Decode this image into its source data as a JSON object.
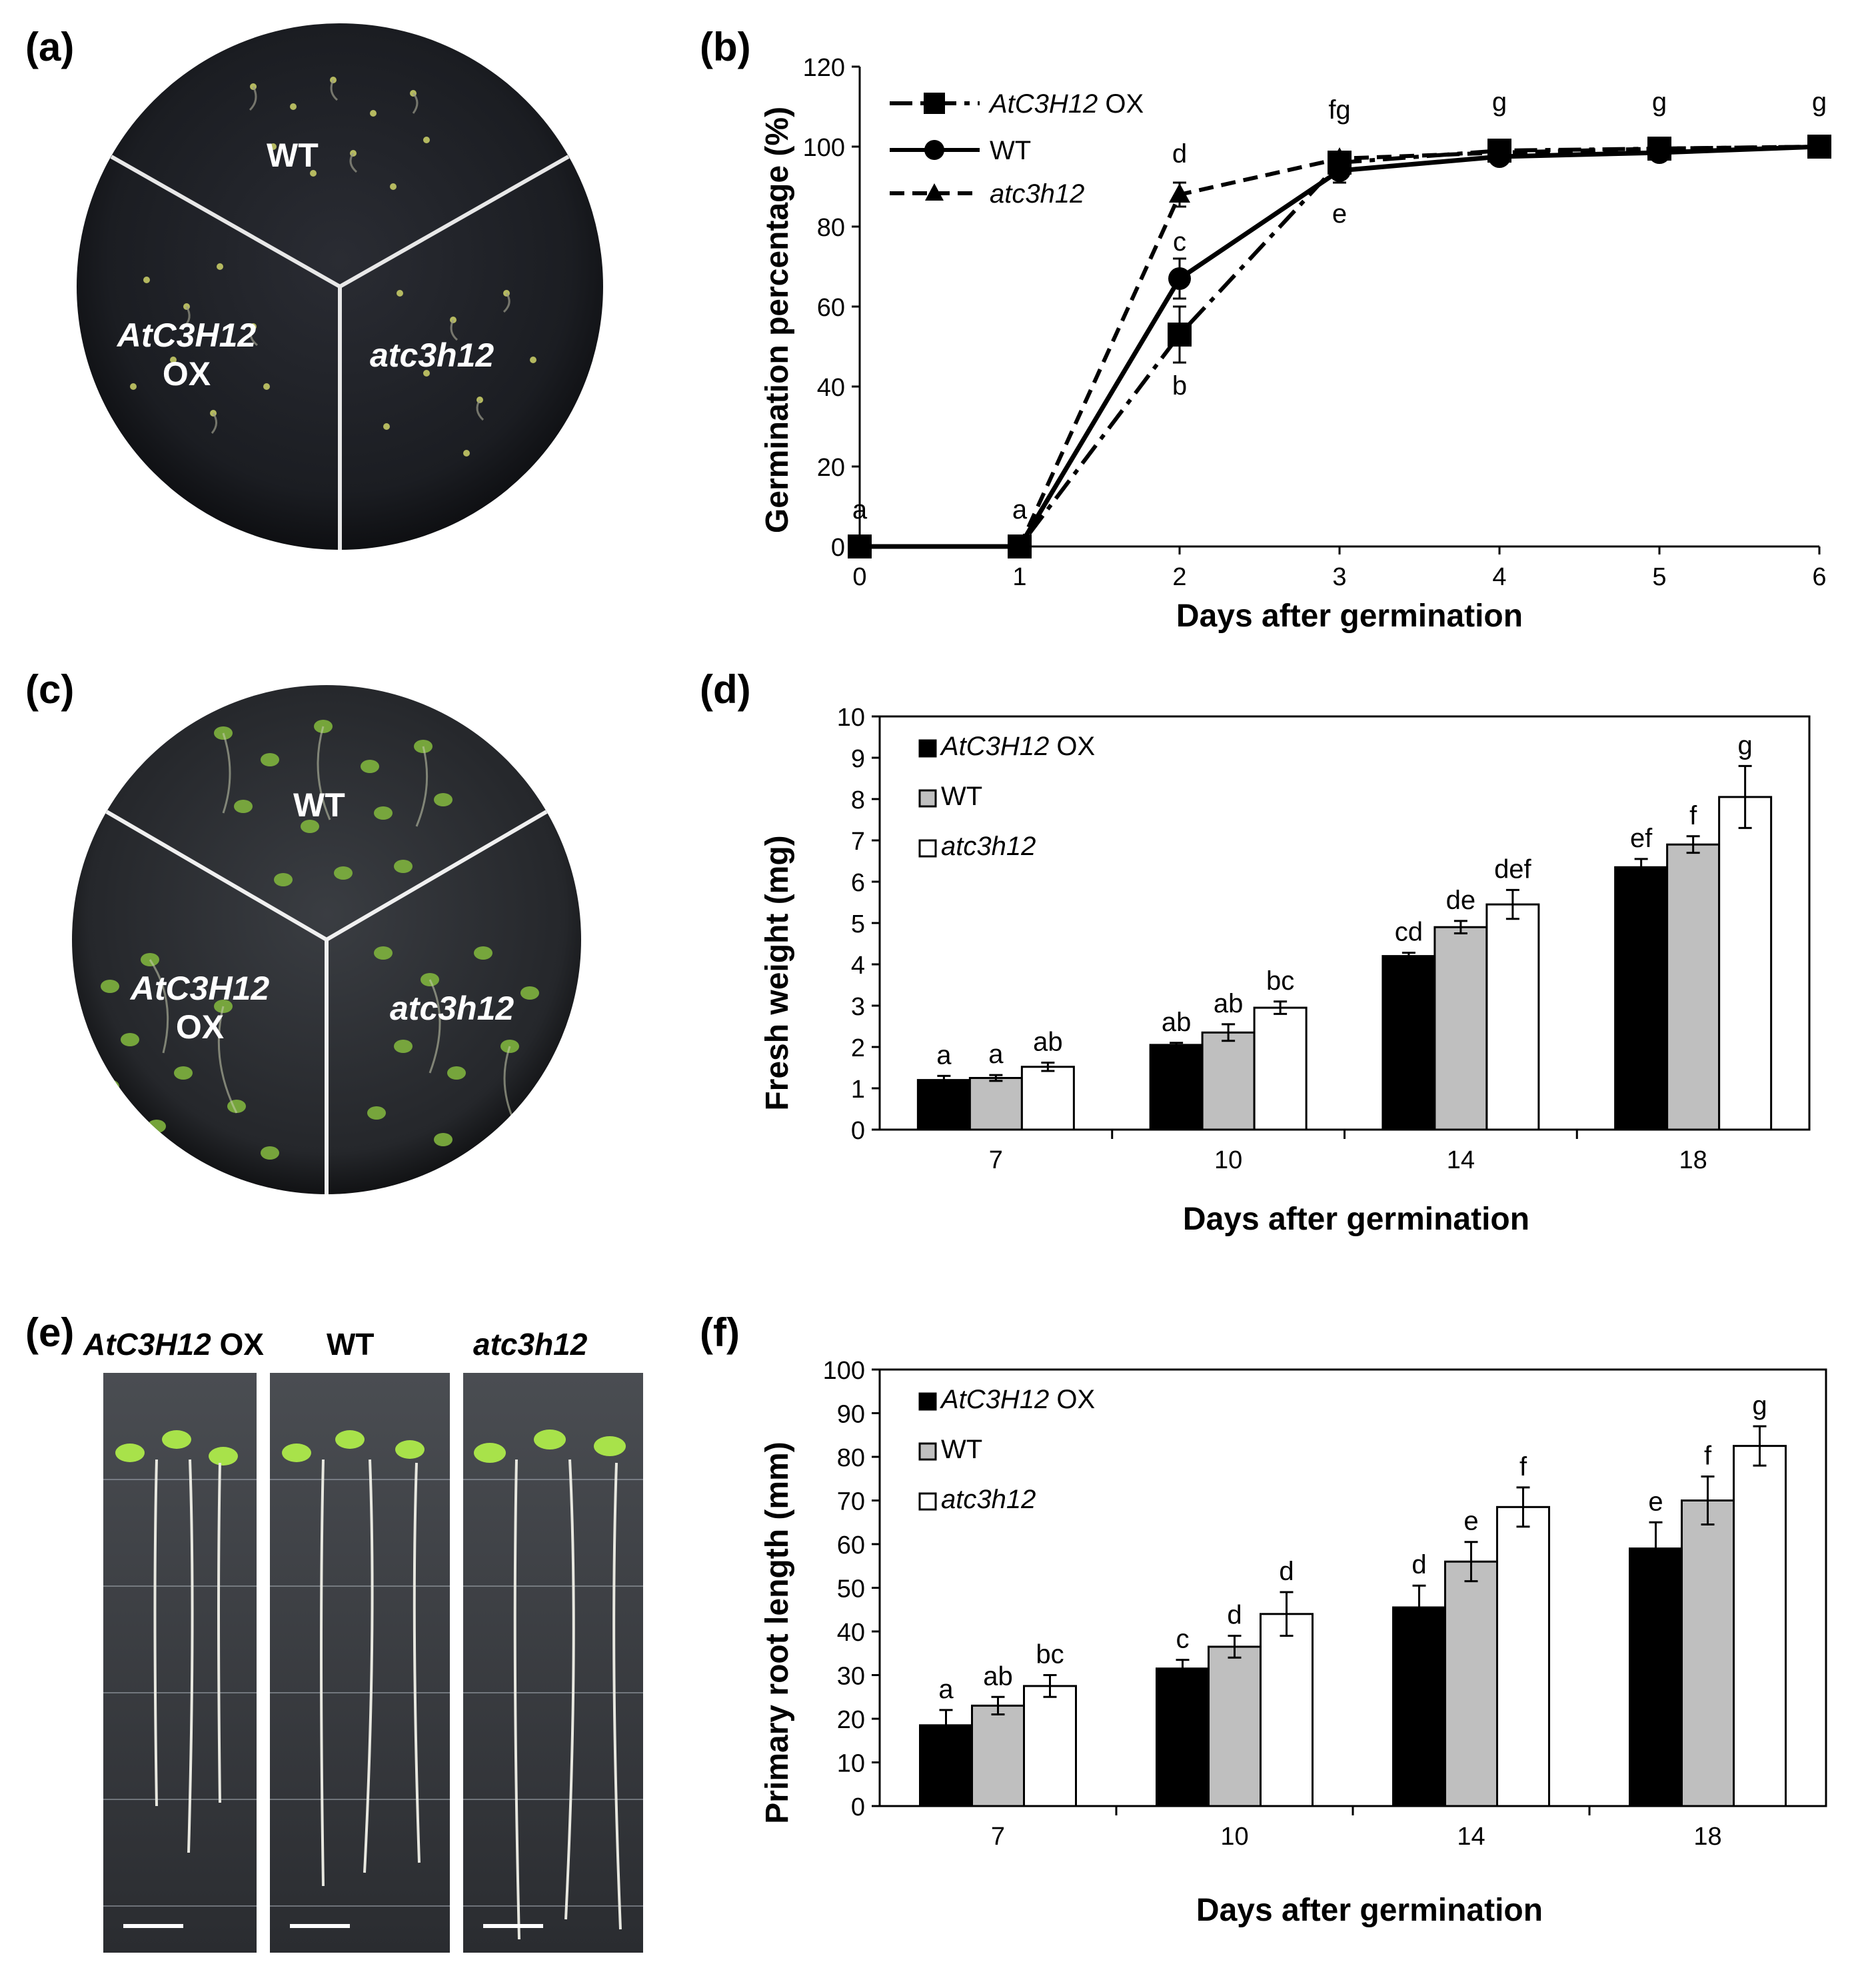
{
  "panels": {
    "a": {
      "label": "(a)",
      "wt": "WT",
      "ox_name": "AtC3H12",
      "ox_suffix": "OX",
      "mutant": "atc3h12"
    },
    "c": {
      "label": "(c)",
      "wt": "WT",
      "ox_name": "AtC3H12",
      "ox_suffix": "OX",
      "mutant": "atc3h12"
    },
    "e": {
      "label": "(e)",
      "ox_name": "AtC3H12",
      "ox_suffix": "OX",
      "wt": "WT",
      "mutant": "atc3h12"
    },
    "b": {
      "label": "(b)"
    },
    "d": {
      "label": "(d)"
    },
    "f": {
      "label": "(f)"
    }
  },
  "chart_data": [
    {
      "id": "b",
      "type": "line",
      "xlabel": "Days after germination",
      "ylabel": "Germination percentage (%)",
      "xlim": [
        0,
        6
      ],
      "ylim": [
        0,
        120
      ],
      "xticks": [
        "0",
        "1",
        "2",
        "3",
        "4",
        "5",
        "6"
      ],
      "yticks": [
        "0",
        "20",
        "40",
        "60",
        "80",
        "100",
        "120"
      ],
      "legend_position": "top-left",
      "x": [
        0,
        1,
        2,
        3,
        4,
        5,
        6
      ],
      "series": [
        {
          "name": "AtC3H12",
          "name_suffix": " OX",
          "marker": "square",
          "line": "dash-dot",
          "values": [
            0,
            0,
            53,
            96,
            99,
            99.5,
            100
          ],
          "errors": [
            0,
            0,
            7,
            1.5,
            1,
            0.5,
            0
          ]
        },
        {
          "name": "WT",
          "name_suffix": "",
          "marker": "circle",
          "line": "solid",
          "values": [
            0,
            0,
            67,
            94,
            97.5,
            98.5,
            100
          ],
          "errors": [
            0,
            0,
            5,
            3,
            1,
            0.5,
            0
          ]
        },
        {
          "name": "atc3h12",
          "name_suffix": "",
          "marker": "triangle",
          "line": "dashed",
          "values": [
            0,
            0,
            88,
            97,
            98.5,
            99.5,
            100
          ],
          "errors": [
            0,
            0,
            3,
            1.5,
            1,
            0.5,
            0
          ]
        }
      ],
      "annotations": [
        {
          "x": 0,
          "y": 7,
          "text": "a"
        },
        {
          "x": 1,
          "y": 7,
          "text": "a"
        },
        {
          "x": 2,
          "y": 96,
          "text": "d"
        },
        {
          "x": 2,
          "y": 74,
          "text": "c"
        },
        {
          "x": 2,
          "y": 38,
          "text": "b"
        },
        {
          "x": 3,
          "y": 107,
          "text": "fg"
        },
        {
          "x": 3,
          "y": 81,
          "text": "e"
        },
        {
          "x": 4,
          "y": 109,
          "text": "g"
        },
        {
          "x": 5,
          "y": 109,
          "text": "g"
        },
        {
          "x": 6,
          "y": 109,
          "text": "g"
        }
      ]
    },
    {
      "id": "d",
      "type": "bar",
      "xlabel": "Days after germination",
      "ylabel": "Fresh weight (mg)",
      "categories": [
        "7",
        "10",
        "14",
        "18"
      ],
      "ylim": [
        0,
        10
      ],
      "yticks": [
        "0",
        "1",
        "2",
        "3",
        "4",
        "5",
        "6",
        "7",
        "8",
        "9",
        "10"
      ],
      "legend_position": "top-left",
      "series": [
        {
          "name": "AtC3H12",
          "name_suffix": " OX",
          "color": "#000000",
          "values": [
            1.2,
            2.05,
            4.2,
            6.35
          ],
          "errors": [
            0.1,
            0.05,
            0.08,
            0.2
          ]
        },
        {
          "name": "WT",
          "name_suffix": "",
          "color": "#bfbfbf",
          "values": [
            1.25,
            2.35,
            4.9,
            6.9
          ],
          "errors": [
            0.07,
            0.2,
            0.15,
            0.2
          ]
        },
        {
          "name": "atc3h12",
          "name_suffix": "",
          "color": "#ffffff",
          "values": [
            1.52,
            2.95,
            5.45,
            8.05
          ],
          "errors": [
            0.1,
            0.15,
            0.35,
            0.75
          ]
        }
      ],
      "letters": [
        [
          "a",
          "a",
          "ab"
        ],
        [
          "ab",
          "ab",
          "bc"
        ],
        [
          "cd",
          "de",
          "def"
        ],
        [
          "ef",
          "f",
          "g"
        ]
      ]
    },
    {
      "id": "f",
      "type": "bar",
      "xlabel": "Days after germination",
      "ylabel": "Primary root length (mm)",
      "categories": [
        "7",
        "10",
        "14",
        "18"
      ],
      "ylim": [
        0,
        100
      ],
      "yticks": [
        "0",
        "10",
        "20",
        "30",
        "40",
        "50",
        "60",
        "70",
        "80",
        "90",
        "100"
      ],
      "legend_position": "top-left",
      "series": [
        {
          "name": "AtC3H12",
          "name_suffix": " OX",
          "color": "#000000",
          "values": [
            18.5,
            31.5,
            45.5,
            59
          ],
          "errors": [
            3.5,
            2,
            5,
            6
          ]
        },
        {
          "name": "WT",
          "name_suffix": "",
          "color": "#bfbfbf",
          "values": [
            23,
            36.5,
            56,
            70
          ],
          "errors": [
            2,
            2.5,
            4.5,
            5.5
          ]
        },
        {
          "name": "atc3h12",
          "name_suffix": "",
          "color": "#ffffff",
          "values": [
            27.5,
            44,
            68.5,
            82.5
          ],
          "errors": [
            2.5,
            5,
            4.5,
            4.5
          ]
        }
      ],
      "letters": [
        [
          "a",
          "ab",
          "bc"
        ],
        [
          "c",
          "d",
          "d"
        ],
        [
          "d",
          "e",
          "f"
        ],
        [
          "e",
          "f",
          "g"
        ]
      ]
    }
  ]
}
